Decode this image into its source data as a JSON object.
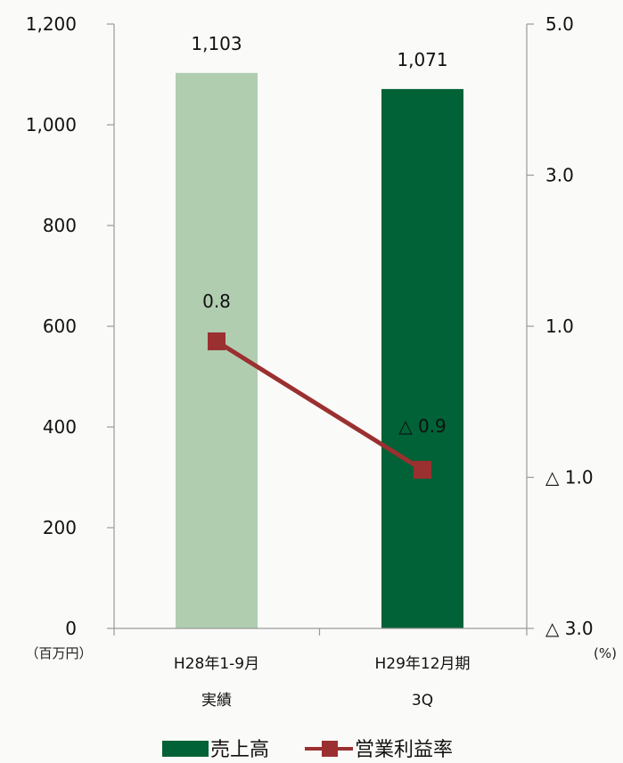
{
  "chart_data": {
    "type": "bar",
    "categories": [
      {
        "line1": "H28年1-9月",
        "line2": "実績"
      },
      {
        "line1": "H29年12月期",
        "line2": "3Q"
      }
    ],
    "series": [
      {
        "name": "売上高",
        "kind": "bar",
        "axis": "left",
        "values": [
          1103,
          1071
        ],
        "value_labels": [
          "1,103",
          "1,071"
        ],
        "colors": [
          "#b0cdb0",
          "#006236"
        ]
      },
      {
        "name": "営業利益率",
        "kind": "line",
        "axis": "right",
        "values": [
          0.8,
          -0.9
        ],
        "value_labels": [
          "0.8",
          "△ 0.9"
        ],
        "color": "#9b3030"
      }
    ],
    "y_left": {
      "min": 0,
      "max": 1200,
      "ticks": [
        0,
        200,
        400,
        600,
        800,
        1000,
        1200
      ],
      "tick_labels": [
        "0",
        "200",
        "400",
        "600",
        "800",
        "1,000",
        "1,200"
      ],
      "unit": "（百万円）"
    },
    "y_right": {
      "min": -3,
      "max": 5,
      "ticks": [
        -3,
        -1,
        1,
        3,
        5
      ],
      "tick_labels": [
        "△ 3.0",
        "△ 1.0",
        "1.0",
        "3.0",
        "5.0"
      ],
      "unit": "(%)"
    },
    "legend": {
      "position": "bottom",
      "items": [
        {
          "label": "売上高",
          "color": "#006236",
          "marker": "bar"
        },
        {
          "label": "営業利益率",
          "color": "#9b3030",
          "marker": "line-square"
        }
      ]
    }
  }
}
